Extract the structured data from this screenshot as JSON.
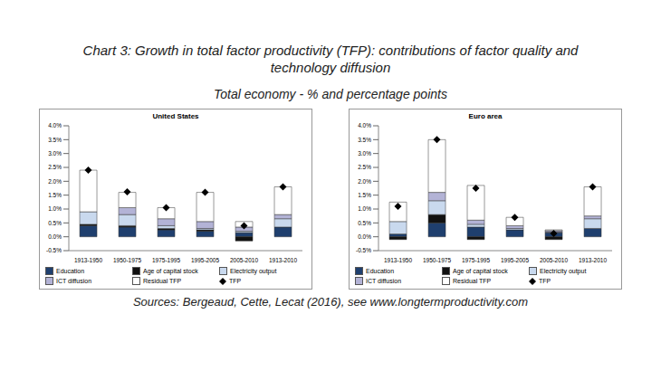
{
  "title": "Chart 3: Growth in total factor productivity (TFP): contributions of factor quality and technology diffusion",
  "subtitle": "Total economy - % and percentage points",
  "source": "Sources: Bergeaud, Cette, Lecat (2016), see www.longtermproductivity.com",
  "chart_data": [
    {
      "type": "bar",
      "title": "United States",
      "stacked": true,
      "grid": false,
      "legend": "bottom",
      "categories": [
        "1913-1950",
        "1950-1975",
        "1975-1995",
        "1995-2005",
        "2005-2010",
        "1913-2010"
      ],
      "ylim": [
        -0.5,
        4.0
      ],
      "yticks": [
        {
          "value": -0.5,
          "label": "-0.5%"
        },
        {
          "value": 0,
          "label": "0.0%"
        },
        {
          "value": 0.5,
          "label": "0.5%"
        },
        {
          "value": 1,
          "label": "1.0%"
        },
        {
          "value": 1.5,
          "label": "1.5%"
        },
        {
          "value": 2,
          "label": "2.0%"
        },
        {
          "value": 2.5,
          "label": "2.5%"
        },
        {
          "value": 3,
          "label": "3.0%"
        },
        {
          "value": 3.5,
          "label": "3.5%"
        },
        {
          "value": 4,
          "label": "4.0%"
        }
      ],
      "series": [
        {
          "name": "Education",
          "type": "bar",
          "color": "#1f3f6e",
          "values": [
            0.4,
            0.35,
            0.25,
            0.2,
            0.15,
            0.35
          ]
        },
        {
          "name": "Age of capital stock",
          "type": "bar",
          "color": "#111111",
          "values": [
            0.05,
            0.05,
            0.05,
            0.05,
            -0.15,
            0.0
          ]
        },
        {
          "name": "Electricity output",
          "type": "bar",
          "color": "#c9d9ee",
          "values": [
            0.45,
            0.4,
            0.1,
            0.05,
            0.05,
            0.3
          ]
        },
        {
          "name": "ICT diffusion",
          "type": "bar",
          "color": "#b3b3d6",
          "values": [
            0.0,
            0.25,
            0.25,
            0.25,
            0.15,
            0.15
          ]
        },
        {
          "name": "Residual TFP",
          "type": "bar",
          "color": "#ffffff",
          "values": [
            1.5,
            0.55,
            0.4,
            1.05,
            0.2,
            1.0
          ]
        },
        {
          "name": "TFP",
          "type": "scatter",
          "marker": "diamond",
          "color": "#000000",
          "values": [
            2.4,
            1.62,
            1.05,
            1.6,
            0.4,
            1.8
          ]
        }
      ]
    },
    {
      "type": "bar",
      "title": "Euro area",
      "stacked": true,
      "grid": false,
      "legend": "bottom",
      "categories": [
        "1913-1950",
        "1950-1975",
        "1975-1995",
        "1995-2005",
        "2005-2010",
        "1913-2010"
      ],
      "ylim": [
        -0.5,
        4.0
      ],
      "yticks": [
        {
          "value": -0.5,
          "label": "-0.5%"
        },
        {
          "value": 0,
          "label": "0.0%"
        },
        {
          "value": 0.5,
          "label": "0.5%"
        },
        {
          "value": 1,
          "label": "1.0%"
        },
        {
          "value": 1.5,
          "label": "1.5%"
        },
        {
          "value": 2,
          "label": "2.0%"
        },
        {
          "value": 2.5,
          "label": "2.5%"
        },
        {
          "value": 3,
          "label": "3.0%"
        },
        {
          "value": 3.5,
          "label": "3.5%"
        },
        {
          "value": 4,
          "label": "4.0%"
        }
      ],
      "series": [
        {
          "name": "Education",
          "type": "bar",
          "color": "#1f3f6e",
          "values": [
            0.1,
            0.5,
            0.35,
            0.25,
            0.15,
            0.3
          ]
        },
        {
          "name": "Age of capital stock",
          "type": "bar",
          "color": "#111111",
          "values": [
            -0.1,
            0.3,
            -0.1,
            0.0,
            -0.1,
            0.0
          ]
        },
        {
          "name": "Electricity output",
          "type": "bar",
          "color": "#c9d9ee",
          "values": [
            0.45,
            0.5,
            0.1,
            0.05,
            0.02,
            0.35
          ]
        },
        {
          "name": "ICT diffusion",
          "type": "bar",
          "color": "#b3b3d6",
          "values": [
            0.0,
            0.3,
            0.15,
            0.1,
            0.05,
            0.1
          ]
        },
        {
          "name": "Residual TFP",
          "type": "bar",
          "color": "#ffffff",
          "values": [
            0.7,
            1.9,
            1.25,
            0.3,
            0.03,
            1.05
          ]
        },
        {
          "name": "TFP",
          "type": "scatter",
          "marker": "diamond",
          "color": "#000000",
          "values": [
            1.1,
            3.5,
            1.75,
            0.7,
            0.12,
            1.8
          ]
        }
      ]
    }
  ]
}
